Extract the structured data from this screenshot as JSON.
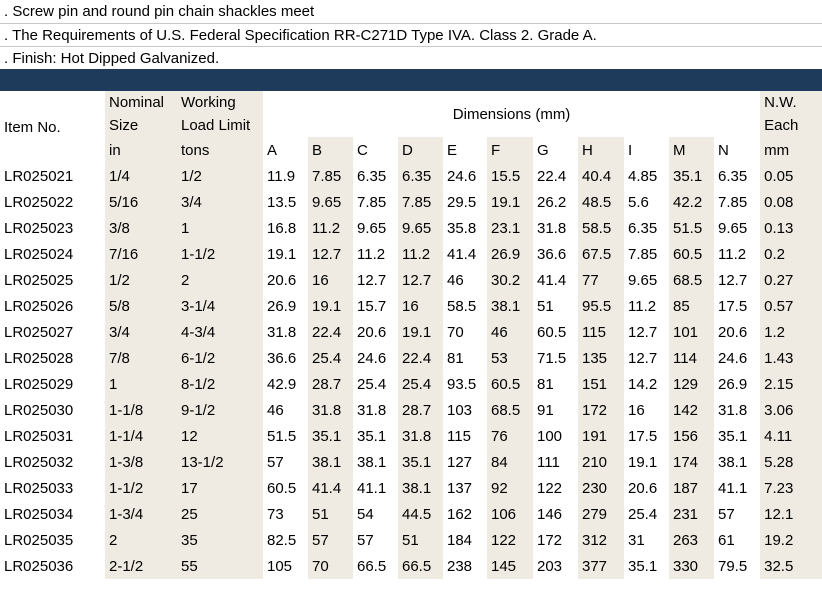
{
  "notes": [
    ". Screw pin and round pin chain shackles meet",
    ". The Requirements of U.S. Federal Specification RR-C271D Type IVA. Class 2. Grade A.",
    ".  Finish: Hot Dipped Galvanized."
  ],
  "table": {
    "header": {
      "item_no": "Item No.",
      "nominal_size": [
        "Nominal",
        "Size"
      ],
      "working_load_limit": [
        "Working",
        "Load Limit"
      ],
      "dimensions": "Dimensions (mm)",
      "nw_each": [
        "N.W.",
        "Each"
      ],
      "units": {
        "nominal_size": "in",
        "working_load_limit": "tons",
        "nw_each": "mm"
      },
      "dimension_cols": [
        "A",
        "B",
        "C",
        "D",
        "E",
        "F",
        "G",
        "H",
        "I",
        "M",
        "N"
      ]
    },
    "rows": [
      [
        "LR025021",
        "1/4",
        "1/2",
        "11.9",
        "7.85",
        "6.35",
        "6.35",
        "24.6",
        "15.5",
        "22.4",
        "40.4",
        "4.85",
        "35.1",
        "6.35",
        "0.05"
      ],
      [
        "LR025022",
        "5/16",
        "3/4",
        "13.5",
        "9.65",
        "7.85",
        "7.85",
        "29.5",
        "19.1",
        "26.2",
        "48.5",
        "5.6",
        "42.2",
        "7.85",
        "0.08"
      ],
      [
        "LR025023",
        "3/8",
        "1",
        "16.8",
        "11.2",
        "9.65",
        "9.65",
        "35.8",
        "23.1",
        "31.8",
        "58.5",
        "6.35",
        "51.5",
        "9.65",
        "0.13"
      ],
      [
        "LR025024",
        "7/16",
        "1-1/2",
        "19.1",
        "12.7",
        "11.2",
        "11.2",
        "41.4",
        "26.9",
        "36.6",
        "67.5",
        "7.85",
        "60.5",
        "11.2",
        "0.2"
      ],
      [
        "LR025025",
        "1/2",
        "2",
        "20.6",
        "16",
        "12.7",
        "12.7",
        "46",
        "30.2",
        "41.4",
        "77",
        "9.65",
        "68.5",
        "12.7",
        "0.27"
      ],
      [
        "LR025026",
        "5/8",
        "3-1/4",
        "26.9",
        "19.1",
        "15.7",
        "16",
        "58.5",
        "38.1",
        "51",
        "95.5",
        "11.2",
        "85",
        "17.5",
        "0.57"
      ],
      [
        "LR025027",
        "3/4",
        "4-3/4",
        "31.8",
        "22.4",
        "20.6",
        "19.1",
        "70",
        "46",
        "60.5",
        "115",
        "12.7",
        "101",
        "20.6",
        "1.2"
      ],
      [
        "LR025028",
        "7/8",
        "6-1/2",
        "36.6",
        "25.4",
        "24.6",
        "22.4",
        "81",
        "53",
        "71.5",
        "135",
        "12.7",
        "114",
        "24.6",
        "1.43"
      ],
      [
        "LR025029",
        "1",
        "8-1/2",
        "42.9",
        "28.7",
        "25.4",
        "25.4",
        "93.5",
        "60.5",
        "81",
        "151",
        "14.2",
        "129",
        "26.9",
        "2.15"
      ],
      [
        "LR025030",
        "1-1/8",
        "9-1/2",
        "46",
        "31.8",
        "31.8",
        "28.7",
        "103",
        "68.5",
        "91",
        "172",
        "16",
        "142",
        "31.8",
        "3.06"
      ],
      [
        "LR025031",
        "1-1/4",
        "12",
        "51.5",
        "35.1",
        "35.1",
        "31.8",
        "115",
        "76",
        "100",
        "191",
        "17.5",
        "156",
        "35.1",
        "4.11"
      ],
      [
        "LR025032",
        "1-3/8",
        "13-1/2",
        "57",
        "38.1",
        "38.1",
        "35.1",
        "127",
        "84",
        "111",
        "210",
        "19.1",
        "174",
        "38.1",
        "5.28"
      ],
      [
        "LR025033",
        "1-1/2",
        "17",
        "60.5",
        "41.4",
        "41.1",
        "38.1",
        "137",
        "92",
        "122",
        "230",
        "20.6",
        "187",
        "41.1",
        "7.23"
      ],
      [
        "LR025034",
        "1-3/4",
        "25",
        "73",
        "51",
        "54",
        "44.5",
        "162",
        "106",
        "146",
        "279",
        "25.4",
        "231",
        "57",
        "12.1"
      ],
      [
        "LR025035",
        "2",
        "35",
        "82.5",
        "57",
        "57",
        "51",
        "184",
        "122",
        "172",
        "312",
        "31",
        "263",
        "61",
        "19.2"
      ],
      [
        "LR025036",
        "2-1/2",
        "55",
        "105",
        "70",
        "66.5",
        "66.5",
        "238",
        "145",
        "203",
        "377",
        "35.1",
        "330",
        "79.5",
        "32.5"
      ]
    ]
  },
  "colors": {
    "band": "#1f3b5c",
    "shade": "#efebe2"
  }
}
